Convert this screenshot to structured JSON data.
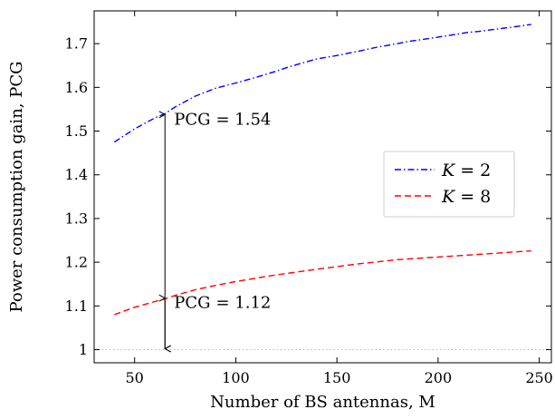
{
  "chart_data": {
    "type": "line",
    "title": "",
    "xlabel": "Number of BS antennas, M",
    "ylabel": "Power consumption gain, PCG",
    "xlim": [
      30,
      256
    ],
    "ylim": [
      0.97,
      1.775
    ],
    "xticks": [
      50,
      100,
      150,
      200,
      250
    ],
    "yticks": [
      1,
      1.1,
      1.2,
      1.3,
      1.4,
      1.5,
      1.6,
      1.7
    ],
    "ytick_labels": [
      "1",
      "1.1",
      "1.2",
      "1.3",
      "1.4",
      "1.5",
      "1.6",
      "1.7"
    ],
    "grid": false,
    "legend_position": "center-right",
    "reference_line": {
      "y": 1,
      "style": "dotted",
      "color": "#aaaaaa"
    },
    "series": [
      {
        "name": "K = 2",
        "name_var": "K",
        "name_value": "= 2",
        "color": "#0000ff",
        "dash": "dash-dot",
        "x": [
          40,
          50,
          60,
          65,
          70,
          80,
          90,
          100,
          110,
          120,
          125,
          130,
          140,
          150,
          160,
          170,
          180,
          185,
          190,
          200,
          210,
          215,
          220,
          230,
          240,
          246
        ],
        "y": [
          1.475,
          1.505,
          1.53,
          1.54,
          1.555,
          1.58,
          1.598,
          1.61,
          1.623,
          1.637,
          1.645,
          1.652,
          1.665,
          1.673,
          1.682,
          1.692,
          1.7,
          1.705,
          1.708,
          1.715,
          1.722,
          1.726,
          1.728,
          1.734,
          1.74,
          1.744
        ]
      },
      {
        "name": "K = 8",
        "name_var": "K",
        "name_value": "= 8",
        "color": "#ff0000",
        "dash": "dashed",
        "x": [
          40,
          50,
          60,
          65,
          70,
          80,
          90,
          100,
          120,
          140,
          160,
          180,
          200,
          220,
          246
        ],
        "y": [
          1.08,
          1.097,
          1.11,
          1.116,
          1.124,
          1.137,
          1.147,
          1.156,
          1.171,
          1.184,
          1.196,
          1.206,
          1.212,
          1.218,
          1.226
        ]
      }
    ],
    "annotations": [
      {
        "text": "PCG = 1.54",
        "text_main": "PCG",
        "text_value": "= 1.54",
        "x": 65,
        "y": 1.54
      },
      {
        "text": "PCG = 1.12",
        "text_main": "PCG",
        "text_value": "= 1.12",
        "x": 65,
        "y": 1.12
      }
    ],
    "arrows": [
      {
        "x": 65,
        "y_from": 1.54,
        "y_to": 1.0
      },
      {
        "x": 65,
        "y_from": 1.12,
        "y_to": 1.0
      }
    ]
  }
}
